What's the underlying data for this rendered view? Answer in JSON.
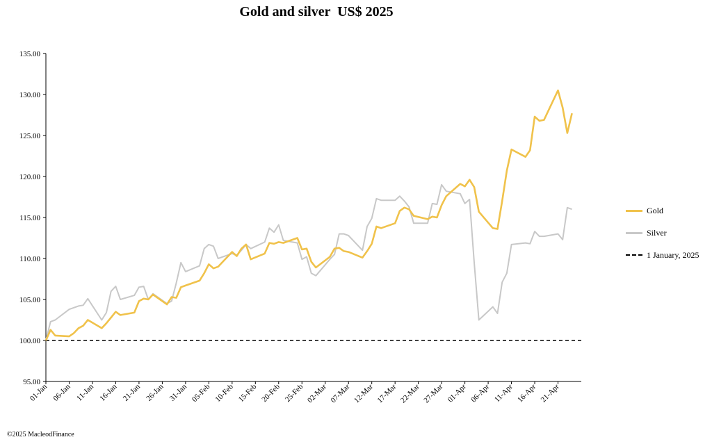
{
  "chart_data": {
    "type": "line",
    "title": "Gold and silver  US$ 2025",
    "ylim": [
      95,
      135
    ],
    "yticks": [
      "95.00",
      "100.00",
      "105.00",
      "110.00",
      "115.00",
      "120.00",
      "125.00",
      "130.00",
      "135.00"
    ],
    "x_range_days": [
      0,
      115
    ],
    "xticks": [
      {
        "label": "01-Jan",
        "day": 0
      },
      {
        "label": "06-Jan",
        "day": 5
      },
      {
        "label": "11-Jan",
        "day": 10
      },
      {
        "label": "16-Jan",
        "day": 15
      },
      {
        "label": "21-Jan",
        "day": 20
      },
      {
        "label": "26-Jan",
        "day": 25
      },
      {
        "label": "31-Jan",
        "day": 30
      },
      {
        "label": "05-Feb",
        "day": 35
      },
      {
        "label": "10-Feb",
        "day": 40
      },
      {
        "label": "15-Feb",
        "day": 45
      },
      {
        "label": "20-Feb",
        "day": 50
      },
      {
        "label": "25-Feb",
        "day": 55
      },
      {
        "label": "02-Mar",
        "day": 60
      },
      {
        "label": "07-Mar",
        "day": 65
      },
      {
        "label": "12-Mar",
        "day": 70
      },
      {
        "label": "17-Mar",
        "day": 75
      },
      {
        "label": "22-Mar",
        "day": 80
      },
      {
        "label": "27-Mar",
        "day": 85
      },
      {
        "label": "01-Apr",
        "day": 90
      },
      {
        "label": "06-Apr",
        "day": 95
      },
      {
        "label": "11-Apr",
        "day": 100
      },
      {
        "label": "16-Apr",
        "day": 105
      },
      {
        "label": "21-Apr",
        "day": 110
      }
    ],
    "legend_position": "right",
    "grid": false,
    "series": [
      {
        "name": "Gold",
        "color": "#F0C24B",
        "style": "solid",
        "points": [
          [
            0,
            100.0
          ],
          [
            1,
            101.3
          ],
          [
            2,
            100.6
          ],
          [
            5,
            100.5
          ],
          [
            6,
            100.9
          ],
          [
            7,
            101.5
          ],
          [
            8,
            101.8
          ],
          [
            9,
            102.5
          ],
          [
            12,
            101.5
          ],
          [
            13,
            102.1
          ],
          [
            14,
            102.8
          ],
          [
            15,
            103.5
          ],
          [
            16,
            103.1
          ],
          [
            19,
            103.4
          ],
          [
            20,
            104.8
          ],
          [
            21,
            105.1
          ],
          [
            22,
            105.0
          ],
          [
            23,
            105.6
          ],
          [
            26,
            104.4
          ],
          [
            27,
            105.3
          ],
          [
            28,
            105.2
          ],
          [
            29,
            106.5
          ],
          [
            30,
            106.7
          ],
          [
            33,
            107.3
          ],
          [
            34,
            108.2
          ],
          [
            35,
            109.3
          ],
          [
            36,
            108.8
          ],
          [
            37,
            109.0
          ],
          [
            40,
            110.8
          ],
          [
            41,
            110.3
          ],
          [
            42,
            111.2
          ],
          [
            43,
            111.7
          ],
          [
            44,
            109.9
          ],
          [
            47,
            110.6
          ],
          [
            48,
            111.9
          ],
          [
            49,
            111.8
          ],
          [
            50,
            112.0
          ],
          [
            51,
            111.9
          ],
          [
            54,
            112.5
          ],
          [
            55,
            111.1
          ],
          [
            56,
            111.2
          ],
          [
            57,
            109.6
          ],
          [
            58,
            108.9
          ],
          [
            61,
            110.2
          ],
          [
            62,
            111.2
          ],
          [
            63,
            111.3
          ],
          [
            64,
            110.9
          ],
          [
            65,
            110.8
          ],
          [
            68,
            110.1
          ],
          [
            69,
            110.9
          ],
          [
            70,
            111.8
          ],
          [
            71,
            113.9
          ],
          [
            72,
            113.7
          ],
          [
            75,
            114.3
          ],
          [
            76,
            115.8
          ],
          [
            77,
            116.2
          ],
          [
            78,
            116.0
          ],
          [
            79,
            115.2
          ],
          [
            82,
            114.8
          ],
          [
            83,
            115.1
          ],
          [
            84,
            115.0
          ],
          [
            85,
            116.5
          ],
          [
            86,
            117.6
          ],
          [
            89,
            119.1
          ],
          [
            90,
            118.8
          ],
          [
            91,
            119.6
          ],
          [
            92,
            118.7
          ],
          [
            93,
            115.7
          ],
          [
            96,
            113.7
          ],
          [
            97,
            113.6
          ],
          [
            98,
            117.0
          ],
          [
            99,
            120.7
          ],
          [
            100,
            123.3
          ],
          [
            103,
            122.4
          ],
          [
            104,
            123.2
          ],
          [
            105,
            127.3
          ],
          [
            106,
            126.8
          ],
          [
            107,
            126.9
          ],
          [
            110,
            130.5
          ],
          [
            111,
            128.4
          ],
          [
            112,
            125.3
          ],
          [
            113,
            127.7
          ]
        ]
      },
      {
        "name": "Silver",
        "color": "#C8C8C8",
        "style": "solid",
        "points": [
          [
            0,
            100.0
          ],
          [
            1,
            102.3
          ],
          [
            2,
            102.5
          ],
          [
            5,
            103.8
          ],
          [
            7,
            104.2
          ],
          [
            8,
            104.3
          ],
          [
            9,
            105.1
          ],
          [
            12,
            102.5
          ],
          [
            13,
            103.4
          ],
          [
            14,
            106.0
          ],
          [
            15,
            106.6
          ],
          [
            16,
            105.0
          ],
          [
            19,
            105.5
          ],
          [
            20,
            106.5
          ],
          [
            21,
            106.6
          ],
          [
            22,
            105.0
          ],
          [
            23,
            105.7
          ],
          [
            26,
            104.5
          ],
          [
            27,
            104.8
          ],
          [
            28,
            107.0
          ],
          [
            29,
            109.5
          ],
          [
            30,
            108.4
          ],
          [
            33,
            109.1
          ],
          [
            34,
            111.2
          ],
          [
            35,
            111.7
          ],
          [
            36,
            111.5
          ],
          [
            37,
            110.0
          ],
          [
            40,
            110.6
          ],
          [
            41,
            110.4
          ],
          [
            42,
            111.0
          ],
          [
            43,
            111.7
          ],
          [
            44,
            111.2
          ],
          [
            47,
            112.0
          ],
          [
            48,
            113.7
          ],
          [
            49,
            113.2
          ],
          [
            50,
            114.1
          ],
          [
            51,
            112.2
          ],
          [
            54,
            111.9
          ],
          [
            55,
            109.9
          ],
          [
            56,
            110.2
          ],
          [
            57,
            108.2
          ],
          [
            58,
            107.9
          ],
          [
            61,
            109.9
          ],
          [
            62,
            110.5
          ],
          [
            63,
            113.0
          ],
          [
            64,
            113.0
          ],
          [
            65,
            112.8
          ],
          [
            68,
            111.0
          ],
          [
            69,
            113.9
          ],
          [
            70,
            114.9
          ],
          [
            71,
            117.3
          ],
          [
            72,
            117.1
          ],
          [
            75,
            117.1
          ],
          [
            76,
            117.6
          ],
          [
            77,
            117.0
          ],
          [
            78,
            116.3
          ],
          [
            79,
            114.3
          ],
          [
            82,
            114.3
          ],
          [
            83,
            116.7
          ],
          [
            84,
            116.6
          ],
          [
            85,
            119.0
          ],
          [
            86,
            118.2
          ],
          [
            89,
            117.9
          ],
          [
            90,
            116.7
          ],
          [
            91,
            117.2
          ],
          [
            92,
            109.5
          ],
          [
            93,
            102.5
          ],
          [
            96,
            104.1
          ],
          [
            97,
            103.3
          ],
          [
            98,
            107.1
          ],
          [
            99,
            108.2
          ],
          [
            100,
            111.7
          ],
          [
            103,
            111.9
          ],
          [
            104,
            111.8
          ],
          [
            105,
            113.3
          ],
          [
            106,
            112.7
          ],
          [
            107,
            112.7
          ],
          [
            110,
            113.0
          ],
          [
            111,
            112.3
          ],
          [
            112,
            116.2
          ],
          [
            113,
            116.0
          ]
        ]
      },
      {
        "name": "1 January, 2025",
        "color": "#000000",
        "style": "dashed",
        "points": [
          [
            0,
            100.0
          ],
          [
            115,
            100.0
          ]
        ]
      }
    ]
  },
  "legend": {
    "gold_label": "Gold",
    "silver_label": "Silver",
    "baseline_label": "1 January, 2025"
  },
  "footer": {
    "copyright": "©2025 MacleodFinance"
  }
}
